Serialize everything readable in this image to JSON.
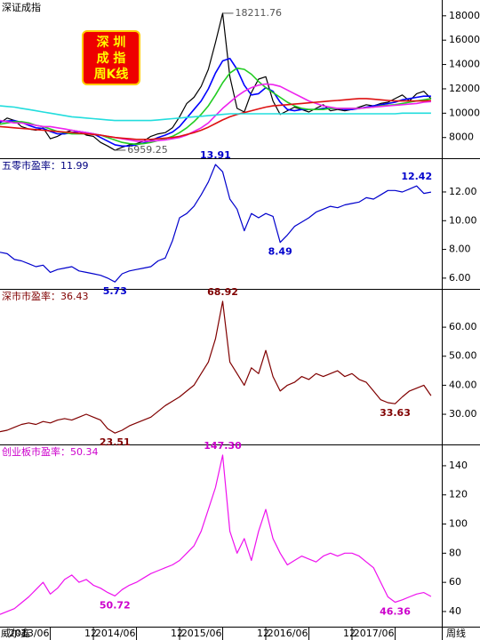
{
  "chart_data": [
    {
      "type": "line",
      "title": "深证成指",
      "title_color": "#000000",
      "annotation_color": "#555555",
      "legend_box": [
        "深 圳",
        "成 指",
        "周K线"
      ],
      "xlim": [
        0,
        61.5
      ],
      "ylim": [
        6300,
        19300
      ],
      "yticks": [
        8000,
        10000,
        12000,
        14000,
        16000,
        18000
      ],
      "series": [
        {
          "color": "#000000",
          "values": [
            9200,
            9600,
            9400,
            8900,
            8700,
            8600,
            8800,
            7900,
            8100,
            8400,
            8600,
            8500,
            8200,
            8100,
            7600,
            7300,
            6959.25,
            7200,
            7400,
            7500,
            7700,
            8100,
            8300,
            8400,
            8800,
            9700,
            10800,
            11300,
            12200,
            13600,
            15800,
            18211.76,
            13000,
            10400,
            10100,
            11700,
            12800,
            13000,
            11000,
            9900,
            10200,
            10500,
            10300,
            10100,
            10400,
            10700,
            10200,
            10300,
            10200,
            10300,
            10500,
            10700,
            10600,
            10800,
            10900,
            11200,
            11500,
            11000,
            11600,
            11800,
            11200
          ]
        },
        {
          "color": "#0000ff",
          "values": [
            9300,
            9350,
            9400,
            9250,
            9000,
            8800,
            8750,
            8500,
            8300,
            8300,
            8400,
            8500,
            8400,
            8300,
            8000,
            7700,
            7400,
            7300,
            7300,
            7400,
            7550,
            7750,
            8000,
            8200,
            8450,
            8900,
            9600,
            10300,
            11000,
            12000,
            13300,
            14300,
            14500,
            13600,
            12300,
            11500,
            11600,
            12100,
            11800,
            10900,
            10300,
            10200,
            10300,
            10300,
            10300,
            10400,
            10400,
            10400,
            10300,
            10300,
            10400,
            10500,
            10600,
            10700,
            10800,
            10900,
            11100,
            11200,
            11300,
            11400,
            11400
          ]
        },
        {
          "color": "#22cc22",
          "values": [
            9100,
            9200,
            9300,
            9300,
            9200,
            9000,
            8900,
            8700,
            8500,
            8400,
            8300,
            8300,
            8300,
            8300,
            8200,
            8000,
            7800,
            7600,
            7500,
            7450,
            7500,
            7600,
            7750,
            7900,
            8100,
            8400,
            8800,
            9300,
            9900,
            10600,
            11500,
            12500,
            13300,
            13700,
            13600,
            13200,
            12600,
            12100,
            11700,
            11300,
            10900,
            10600,
            10400,
            10300,
            10300,
            10300,
            10400,
            10400,
            10400,
            10400,
            10400,
            10450,
            10500,
            10600,
            10650,
            10700,
            10800,
            10900,
            11000,
            11100,
            11200
          ]
        },
        {
          "color": "#ee22ee",
          "values": [
            9400,
            9300,
            9200,
            9200,
            9100,
            9000,
            8900,
            8900,
            8800,
            8700,
            8600,
            8500,
            8400,
            8300,
            8200,
            8100,
            8000,
            7900,
            7800,
            7700,
            7700,
            7700,
            7750,
            7800,
            7900,
            8000,
            8200,
            8500,
            8800,
            9200,
            9800,
            10400,
            10900,
            11400,
            11800,
            12100,
            12300,
            12400,
            12350,
            12200,
            11900,
            11600,
            11300,
            11000,
            10800,
            10600,
            10500,
            10400,
            10400,
            10400,
            10400,
            10450,
            10500,
            10550,
            10600,
            10650,
            10700,
            10750,
            10800,
            10900,
            10950
          ]
        },
        {
          "color": "#dd1111",
          "values": [
            8900,
            8850,
            8800,
            8750,
            8700,
            8650,
            8600,
            8550,
            8500,
            8450,
            8400,
            8350,
            8300,
            8250,
            8200,
            8100,
            8000,
            7950,
            7900,
            7850,
            7850,
            7850,
            7900,
            7950,
            8000,
            8100,
            8250,
            8400,
            8600,
            8850,
            9150,
            9450,
            9700,
            9900,
            10050,
            10200,
            10350,
            10500,
            10600,
            10650,
            10700,
            10750,
            10800,
            10850,
            10900,
            10950,
            11000,
            11050,
            11100,
            11150,
            11200,
            11200,
            11150,
            11100,
            11050,
            11000,
            11000,
            11000,
            11000,
            11000,
            11050
          ]
        },
        {
          "color": "#22dddd",
          "values": [
            10600,
            10550,
            10500,
            10400,
            10300,
            10200,
            10100,
            10000,
            9900,
            9800,
            9700,
            9650,
            9600,
            9550,
            9500,
            9450,
            9400,
            9400,
            9400,
            9400,
            9400,
            9400,
            9450,
            9500,
            9550,
            9600,
            9650,
            9700,
            9750,
            9800,
            9850,
            9900,
            9950,
            9950,
            9950,
            9950,
            9950,
            9950,
            9950,
            9950,
            9950,
            9950,
            9950,
            9950,
            9950,
            9950,
            9950,
            9950,
            9950,
            9950,
            9950,
            9950,
            9950,
            9950,
            9950,
            9950,
            10000,
            10000,
            10000,
            10000,
            10000
          ]
        }
      ],
      "annotations": [
        {
          "x": 31,
          "value": 18211.76
        },
        {
          "x": 16,
          "value": 6959.25
        }
      ]
    },
    {
      "type": "line",
      "title": "五零市盈率：11.99",
      "title_color": "#000080",
      "annotation_color": "#0000cc",
      "xlim": [
        0,
        61.5
      ],
      "ylim": [
        5.25,
        14.35
      ],
      "yticks": [
        {
          "value": 6,
          "label": "6.00"
        },
        {
          "value": 8,
          "label": "8.00"
        },
        {
          "value": 10,
          "label": "10.00"
        },
        {
          "value": 12,
          "label": "12.00"
        }
      ],
      "series": [
        {
          "color": "#0000cc",
          "values": [
            7.8,
            7.7,
            7.3,
            7.2,
            7.0,
            6.8,
            6.9,
            6.4,
            6.6,
            6.7,
            6.8,
            6.5,
            6.4,
            6.3,
            6.2,
            6.0,
            5.73,
            6.3,
            6.5,
            6.6,
            6.7,
            6.8,
            7.2,
            7.4,
            8.6,
            10.2,
            10.5,
            11.0,
            11.8,
            12.7,
            13.91,
            13.4,
            11.5,
            10.8,
            9.3,
            10.5,
            10.2,
            10.5,
            10.3,
            8.49,
            9.0,
            9.6,
            9.9,
            10.2,
            10.6,
            10.8,
            11.0,
            10.9,
            11.1,
            11.2,
            11.3,
            11.6,
            11.5,
            11.8,
            12.1,
            12.1,
            12.0,
            12.2,
            12.42,
            11.9,
            11.99
          ]
        }
      ],
      "annotations": [
        {
          "x": 30,
          "value": 13.91
        },
        {
          "x": 16,
          "value": 5.73
        },
        {
          "x": 39,
          "value": 8.49
        },
        {
          "x": 58,
          "value": 12.42
        }
      ]
    },
    {
      "type": "line",
      "title": "深市市盈率：36.43",
      "title_color": "#800000",
      "annotation_color": "#800000",
      "xlim": [
        0,
        61.5
      ],
      "ylim": [
        19.6,
        73.2
      ],
      "yticks": [
        {
          "value": 30,
          "label": "30.00"
        },
        {
          "value": 40,
          "label": "40.00"
        },
        {
          "value": 50,
          "label": "50.00"
        },
        {
          "value": 60,
          "label": "60.00"
        }
      ],
      "series": [
        {
          "color": "#800000",
          "values": [
            24,
            24.5,
            25.5,
            26.5,
            27,
            26.5,
            27.5,
            27,
            28,
            28.5,
            28,
            29,
            30,
            29,
            28,
            25,
            23.51,
            24.5,
            26,
            27,
            28,
            29,
            31,
            33,
            34.5,
            36,
            38,
            40,
            44,
            48,
            56,
            68.92,
            48,
            44,
            40,
            46,
            44,
            52,
            43,
            38,
            40,
            41,
            43,
            42,
            44,
            43,
            44,
            45,
            43,
            44,
            42,
            41,
            38,
            35,
            34,
            33.63,
            36,
            38,
            39,
            40,
            36.43
          ]
        }
      ],
      "annotations": [
        {
          "x": 31,
          "value": 68.92
        },
        {
          "x": 16,
          "value": 23.51
        },
        {
          "x": 55,
          "value": 33.63
        }
      ]
    },
    {
      "type": "line",
      "title": "创业板市盈率：50.34",
      "title_color": "#cc00cc",
      "annotation_color": "#cc00cc",
      "xlim": [
        0,
        61.5
      ],
      "ylim": [
        29.6,
        154.6
      ],
      "yticks": [
        40,
        60,
        80,
        100,
        120,
        140
      ],
      "series": [
        {
          "color": "#ee11ee",
          "values": [
            38,
            40,
            42,
            46,
            50,
            55,
            60,
            52,
            56,
            62,
            65,
            60,
            62,
            58,
            56,
            53,
            50.72,
            55,
            58,
            60,
            63,
            66,
            68,
            70,
            72,
            75,
            80,
            85,
            95,
            110,
            125,
            147.3,
            95,
            80,
            90,
            75,
            95,
            110,
            90,
            80,
            72,
            75,
            78,
            76,
            74,
            78,
            80,
            78,
            80,
            80,
            78,
            74,
            70,
            60,
            50,
            46.36,
            48,
            50,
            52,
            53,
            50.34
          ]
        }
      ],
      "annotations": [
        {
          "x": 31,
          "value": 147.3,
          "label": "147.30"
        },
        {
          "x": 16,
          "value": 50.72
        },
        {
          "x": 55,
          "value": 46.36
        }
      ],
      "xticks": [
        {
          "value": 7,
          "label": "2013/06"
        },
        {
          "value": 13,
          "label": "12"
        },
        {
          "value": 19,
          "label": "2014/06"
        },
        {
          "value": 25,
          "label": "12"
        },
        {
          "value": 31,
          "label": "2015/06"
        },
        {
          "value": 37,
          "label": "12"
        },
        {
          "value": 43,
          "label": "2016/06"
        },
        {
          "value": 49,
          "label": "12"
        },
        {
          "value": 55,
          "label": "2017/06"
        }
      ],
      "corner_label": "威尔鑫",
      "period_label": "周线"
    }
  ]
}
